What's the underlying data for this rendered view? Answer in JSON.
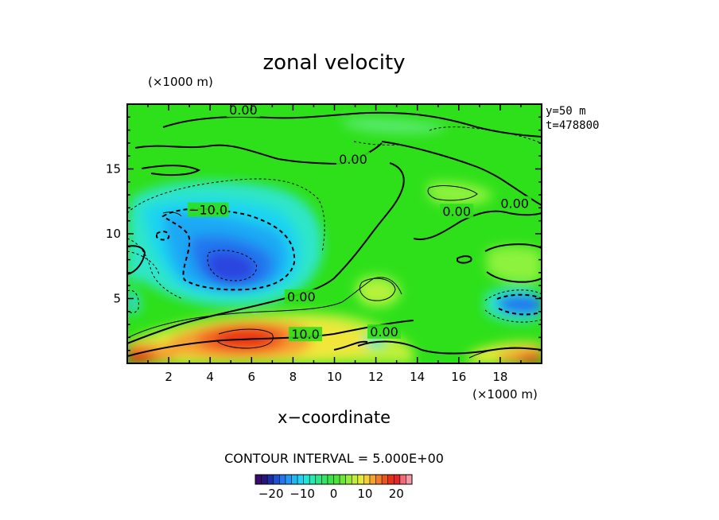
{
  "chart_data": {
    "type": "heatmap",
    "title": "zonal velocity",
    "xlabel": "x−coordinate",
    "x_units": "(×1000 m)",
    "y_units": "(×1000 m)",
    "info": [
      "y=50  m",
      "t=478800"
    ],
    "contour_interval_text": "CONTOUR INTERVAL = 5.000E+00",
    "xlim": [
      0,
      20
    ],
    "ylim": [
      0,
      20
    ],
    "x_ticks": [
      2,
      4,
      6,
      8,
      10,
      12,
      14,
      16,
      18
    ],
    "y_ticks": [
      5,
      10,
      15
    ],
    "x_tick_labels": [
      "2",
      "4",
      "6",
      "8",
      "10",
      "12",
      "14",
      "16",
      "18"
    ],
    "y_tick_labels": [
      "5",
      "10",
      "15"
    ],
    "contour_labels": [
      {
        "text": "0.00",
        "x": 5.6,
        "y": 19.5
      },
      {
        "text": "0.00",
        "x": 10.9,
        "y": 15.7
      },
      {
        "text": "0.00",
        "x": 15.9,
        "y": 11.7
      },
      {
        "text": "0.00",
        "x": 18.7,
        "y": 12.3
      },
      {
        "text": "−10.0",
        "x": 3.9,
        "y": 11.8
      },
      {
        "text": "0.00",
        "x": 8.4,
        "y": 5.1
      },
      {
        "text": "10.0",
        "x": 8.6,
        "y": 2.2
      },
      {
        "text": "0.00",
        "x": 12.4,
        "y": 2.4
      }
    ],
    "colorbar": {
      "vmin": -25,
      "vmax": 25,
      "tick_values": [
        -20,
        -10,
        0,
        10,
        20
      ],
      "tick_labels": [
        "−20",
        "−10",
        "0",
        "10",
        "20"
      ]
    },
    "features": [
      {
        "kind": "min",
        "x": 5.2,
        "y": 7.5,
        "value": -22
      },
      {
        "kind": "min",
        "x": 19.2,
        "y": 4.6,
        "value": -15
      },
      {
        "kind": "max",
        "x": 5.6,
        "y": 2.3,
        "value": 22
      },
      {
        "kind": "max",
        "x": 0.5,
        "y": 0.7,
        "value": 20
      },
      {
        "kind": "max",
        "x": 19.6,
        "y": 0.6,
        "value": 18
      }
    ]
  }
}
